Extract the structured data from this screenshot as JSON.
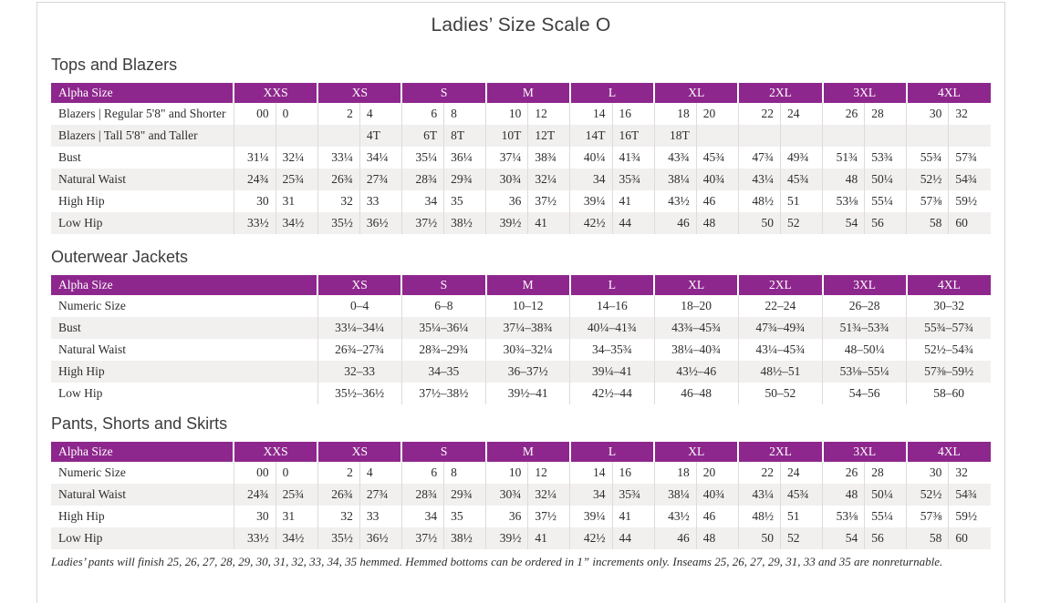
{
  "title": "Ladies’ Size Scale O",
  "colors": {
    "header_purple": "#8e278d",
    "stripe_gray": "#f2f0ef",
    "grid_line": "#dedbda",
    "page_border": "#d8d5d4",
    "heading_text": "#3c3b3d",
    "body_text": "#2e2d2c"
  },
  "tables": [
    {
      "id": "tops-and-blazers",
      "heading": "Tops and Blazers",
      "header_label": "Alpha Size",
      "split": true,
      "sizes": [
        "XXS",
        "XS",
        "S",
        "M",
        "L",
        "XL",
        "2XL",
        "3XL",
        "4XL"
      ],
      "rows": [
        {
          "label": "Blazers  |  Regular 5'8\" and Shorter",
          "values": [
            "00",
            "0",
            "2",
            "4",
            "6",
            "8",
            "10",
            "12",
            "14",
            "16",
            "18",
            "20",
            "22",
            "24",
            "26",
            "28",
            "30",
            "32"
          ]
        },
        {
          "label": "Blazers  |  Tall 5'8\" and Taller",
          "values": [
            "",
            "",
            "",
            "4T",
            "6T",
            "8T",
            "10T",
            "12T",
            "14T",
            "16T",
            "18T",
            "",
            "",
            "",
            "",
            "",
            "",
            ""
          ]
        },
        {
          "label": "Bust",
          "values": [
            "31¼",
            "32¼",
            "33¼",
            "34¼",
            "35¼",
            "36¼",
            "37¼",
            "38¾",
            "40¼",
            "41¾",
            "43¾",
            "45¾",
            "47¾",
            "49¾",
            "51¾",
            "53¾",
            "55¾",
            "57¾"
          ]
        },
        {
          "label": "Natural Waist",
          "values": [
            "24¾",
            "25¾",
            "26¾",
            "27¾",
            "28¾",
            "29¾",
            "30¾",
            "32¼",
            "34",
            "35¾",
            "38¼",
            "40¾",
            "43¼",
            "45¾",
            "48",
            "50¼",
            "52½",
            "54¾"
          ]
        },
        {
          "label": "High Hip",
          "values": [
            "30",
            "31",
            "32",
            "33",
            "34",
            "35",
            "36",
            "37½",
            "39¼",
            "41",
            "43½",
            "46",
            "48½",
            "51",
            "53⅛",
            "55¼",
            "57⅜",
            "59½"
          ]
        },
        {
          "label": "Low Hip",
          "values": [
            "33½",
            "34½",
            "35½",
            "36½",
            "37½",
            "38½",
            "39½",
            "41",
            "42½",
            "44",
            "46",
            "48",
            "50",
            "52",
            "54",
            "56",
            "58",
            "60"
          ]
        }
      ]
    },
    {
      "id": "outerwear-jackets",
      "heading": "Outerwear Jackets",
      "header_label": "Alpha Size",
      "split": false,
      "sizes": [
        "XS",
        "S",
        "M",
        "L",
        "XL",
        "2XL",
        "3XL",
        "4XL"
      ],
      "rows": [
        {
          "label": "Numeric Size",
          "values": [
            "0–4",
            "6–8",
            "10–12",
            "14–16",
            "18–20",
            "22–24",
            "26–28",
            "30–32"
          ]
        },
        {
          "label": "Bust",
          "values": [
            "33¼–34¼",
            "35¼–36¼",
            "37¼–38¾",
            "40¼–41¾",
            "43¾–45¾",
            "47¾–49¾",
            "51¾–53¾",
            "55¾–57¾"
          ]
        },
        {
          "label": "Natural Waist",
          "values": [
            "26¾–27¾",
            "28¾–29¾",
            "30¾–32¼",
            "34–35¾",
            "38¼–40¾",
            "43¼–45¾",
            "48–50¼",
            "52½–54¾"
          ]
        },
        {
          "label": "High Hip",
          "values": [
            "32–33",
            "34–35",
            "36–37½",
            "39¼–41",
            "43½–46",
            "48½–51",
            "53⅛–55¼",
            "57⅜–59½"
          ]
        },
        {
          "label": "Low Hip",
          "values": [
            "35½–36½",
            "37½–38½",
            "39½–41",
            "42½–44",
            "46–48",
            "50–52",
            "54–56",
            "58–60"
          ]
        }
      ]
    },
    {
      "id": "pants-shorts-skirts",
      "heading": "Pants, Shorts and Skirts",
      "header_label": "Alpha Size",
      "split": true,
      "sizes": [
        "XXS",
        "XS",
        "S",
        "M",
        "L",
        "XL",
        "2XL",
        "3XL",
        "4XL"
      ],
      "rows": [
        {
          "label": "Numeric Size",
          "values": [
            "00",
            "0",
            "2",
            "4",
            "6",
            "8",
            "10",
            "12",
            "14",
            "16",
            "18",
            "20",
            "22",
            "24",
            "26",
            "28",
            "30",
            "32"
          ]
        },
        {
          "label": "Natural Waist",
          "values": [
            "24¾",
            "25¾",
            "26¾",
            "27¾",
            "28¾",
            "29¾",
            "30¾",
            "32¼",
            "34",
            "35¾",
            "38¼",
            "40¾",
            "43¼",
            "45¾",
            "48",
            "50¼",
            "52½",
            "54¾"
          ]
        },
        {
          "label": "High Hip",
          "values": [
            "30",
            "31",
            "32",
            "33",
            "34",
            "35",
            "36",
            "37½",
            "39¼",
            "41",
            "43½",
            "46",
            "48½",
            "51",
            "53⅛",
            "55¼",
            "57⅜",
            "59½"
          ]
        },
        {
          "label": "Low Hip",
          "values": [
            "33½",
            "34½",
            "35½",
            "36½",
            "37½",
            "38½",
            "39½",
            "41",
            "42½",
            "44",
            "46",
            "48",
            "50",
            "52",
            "54",
            "56",
            "58",
            "60"
          ]
        }
      ]
    }
  ],
  "footnote": "Ladies’ pants will finish 25, 26, 27, 28, 29, 30, 31, 32, 33, 34, 35 hemmed. Hemmed bottoms can be ordered in 1” increments only. Inseams 25, 26, 27, 29, 31, 33 and 35 are nonreturnable."
}
